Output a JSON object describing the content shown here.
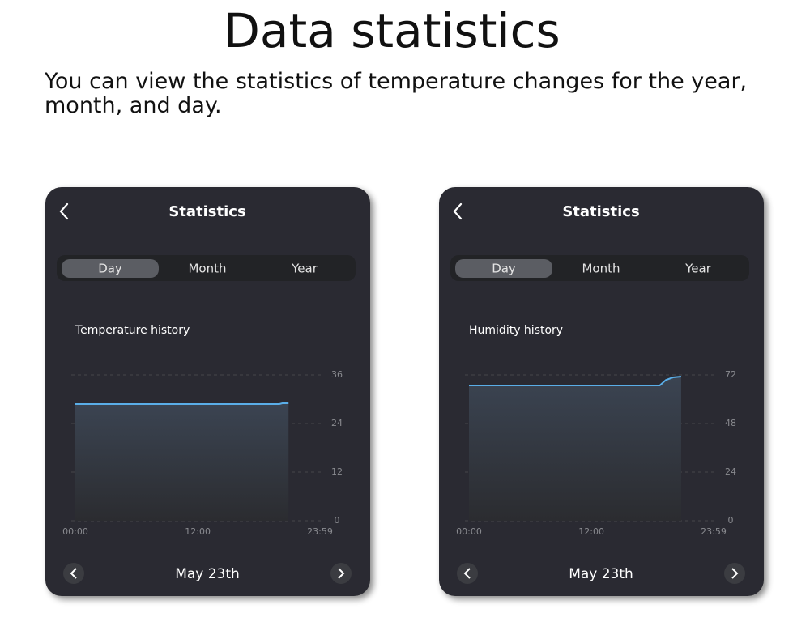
{
  "header": {
    "title": "Data statistics",
    "subtitle": "You can view the statistics of temperature changes for the year, month, and day."
  },
  "panels": [
    {
      "title": "Statistics",
      "tabs": [
        "Day",
        "Month",
        "Year"
      ],
      "date": "May 23th",
      "chart": {
        "type": "area",
        "title": "Temperature history",
        "x": [
          0,
          20,
          20.3,
          20.9
        ],
        "values": [
          28.8,
          28.8,
          29,
          29
        ],
        "color": "#5aaee8",
        "xlim": [
          0,
          23.98
        ],
        "xticks": [
          {
            "value": 0,
            "label": "00:00"
          },
          {
            "value": 12,
            "label": "12:00"
          },
          {
            "value": 23.98,
            "label": "23:59"
          }
        ],
        "ylim": [
          0,
          36
        ],
        "yticks": [
          0,
          12,
          24,
          36
        ],
        "grid": true
      }
    },
    {
      "title": "Statistics",
      "tabs": [
        "Day",
        "Month",
        "Year"
      ],
      "date": "May 23th",
      "chart": {
        "type": "area",
        "title": "Humidity history",
        "x": [
          0,
          18.7,
          19.3,
          20,
          20.8
        ],
        "values": [
          66.8,
          66.8,
          69.5,
          70.8,
          71.2
        ],
        "color": "#5aaee8",
        "xlim": [
          0,
          23.98
        ],
        "xticks": [
          {
            "value": 0,
            "label": "00:00"
          },
          {
            "value": 12,
            "label": "12:00"
          },
          {
            "value": 23.98,
            "label": "23:59"
          }
        ],
        "ylim": [
          0,
          72
        ],
        "yticks": [
          0,
          24,
          48,
          72
        ],
        "grid": true
      }
    }
  ]
}
